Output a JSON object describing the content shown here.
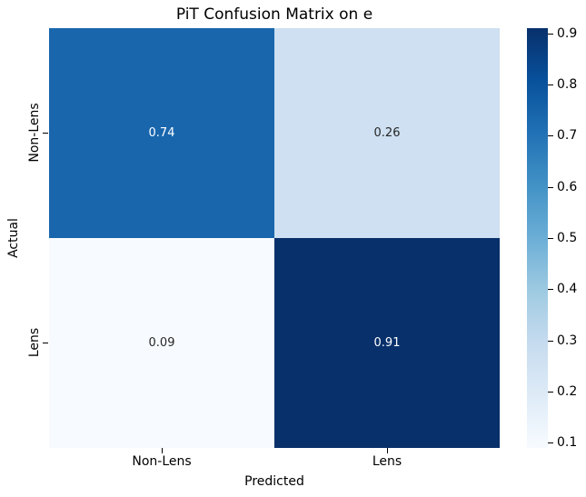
{
  "title": "PiT Confusion Matrix on e",
  "chart_data": {
    "type": "heatmap",
    "title": "PiT Confusion Matrix on e",
    "xlabel": "Predicted",
    "ylabel": "Actual",
    "x_categories": [
      "Non-Lens",
      "Lens"
    ],
    "y_categories": [
      "Non-Lens",
      "Lens"
    ],
    "matrix": [
      [
        0.74,
        0.26
      ],
      [
        0.09,
        0.91
      ]
    ],
    "vmin": 0.09,
    "vmax": 0.91,
    "colormap": "Blues",
    "legend_position": "right-colorbar",
    "grid": false,
    "colorbar_ticks": [
      "0.9",
      "0.8",
      "0.7",
      "0.6",
      "0.5",
      "0.4",
      "0.3",
      "0.2",
      "0.1"
    ],
    "colorbar_tick_values": [
      0.9,
      0.8,
      0.7,
      0.6,
      0.5,
      0.4,
      0.3,
      0.2,
      0.1
    ],
    "colormap_stops_bottom_to_top": [
      "#f7fbff",
      "#deebf7",
      "#c6dbef",
      "#9ecae1",
      "#6baed6",
      "#4292c6",
      "#2171b5",
      "#08519c",
      "#08306b"
    ],
    "cells": [
      {
        "actual": "Non-Lens",
        "predicted": "Non-Lens",
        "label": "0.74",
        "bg": "#1966ad",
        "fg": "#ffffff"
      },
      {
        "actual": "Non-Lens",
        "predicted": "Lens",
        "label": "0.26",
        "bg": "#cee0f1",
        "fg": "#262626"
      },
      {
        "actual": "Lens",
        "predicted": "Non-Lens",
        "label": "0.09",
        "bg": "#f7fbff",
        "fg": "#262626"
      },
      {
        "actual": "Lens",
        "predicted": "Lens",
        "label": "0.91",
        "bg": "#08306b",
        "fg": "#ffffff"
      }
    ]
  }
}
